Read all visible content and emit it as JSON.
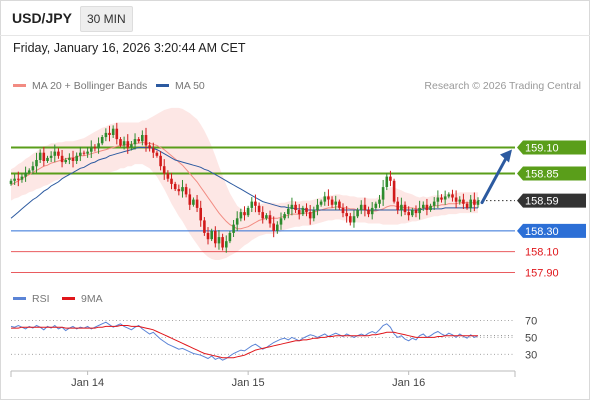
{
  "header": {
    "symbol": "USD/JPY",
    "timeframe": "30 MIN",
    "datetime": "Friday, January 16, 2026 3:20:44 AM CET"
  },
  "legend": {
    "items": [
      {
        "label": "MA 20 + Bollinger Bands",
        "color": "#f28b82"
      },
      {
        "label": "MA 50",
        "color": "#2c5aa0"
      }
    ],
    "credit": "Research © 2026 Trading Central"
  },
  "rsi_legend": {
    "items": [
      {
        "label": "RSI",
        "color": "#5b84d6"
      },
      {
        "label": "9MA",
        "color": "#e0161b"
      }
    ]
  },
  "chart_data": [
    {
      "type": "candlestick",
      "symbol": "USD/JPY",
      "timeframe": "30 MIN",
      "x_ticks": [
        "Jan 14",
        "Jan 15",
        "Jan 16"
      ],
      "ylim": [
        157.78,
        159.45
      ],
      "last_price": "158.59",
      "levels": [
        {
          "value": 159.1,
          "label": "159.10",
          "style": "resistance",
          "color": "#5a9e1a"
        },
        {
          "value": 158.85,
          "label": "158.85",
          "style": "resistance",
          "color": "#5a9e1a"
        },
        {
          "value": 158.59,
          "label": "158.59",
          "style": "last",
          "color": "#333333"
        },
        {
          "value": 158.3,
          "label": "158.30",
          "style": "pivot",
          "color": "#2c6fd6"
        },
        {
          "value": 158.1,
          "label": "158.10",
          "style": "support",
          "color": "#e0161b"
        },
        {
          "value": 157.9,
          "label": "157.90",
          "style": "support",
          "color": "#e0161b"
        }
      ],
      "close": [
        158.78,
        158.8,
        158.79,
        158.82,
        158.86,
        158.88,
        158.92,
        158.98,
        159.05,
        158.97,
        159.0,
        159.02,
        159.06,
        159.02,
        158.96,
        158.98,
        159.0,
        158.97,
        159.02,
        159.05,
        159.04,
        159.06,
        159.1,
        159.09,
        159.14,
        159.2,
        159.24,
        159.22,
        159.28,
        159.18,
        159.12,
        159.16,
        159.1,
        159.13,
        159.18,
        159.16,
        159.22,
        159.12,
        159.09,
        159.05,
        159.02,
        158.92,
        158.85,
        158.8,
        158.75,
        158.7,
        158.68,
        158.72,
        158.65,
        158.55,
        158.6,
        158.52,
        158.4,
        158.28,
        158.22,
        158.3,
        158.18,
        158.24,
        158.14,
        158.2,
        158.28,
        158.36,
        158.42,
        158.48,
        158.45,
        158.52,
        158.58,
        158.54,
        158.48,
        158.42,
        158.45,
        158.37,
        158.3,
        158.36,
        158.42,
        158.46,
        158.51,
        158.55,
        158.5,
        158.46,
        158.52,
        158.48,
        158.42,
        158.5,
        158.55,
        158.58,
        158.63,
        158.6,
        158.55,
        158.58,
        158.52,
        158.47,
        158.44,
        158.38,
        158.44,
        158.5,
        158.55,
        158.5,
        158.46,
        158.52,
        158.56,
        158.6,
        158.72,
        158.82,
        158.78,
        158.58,
        158.5,
        158.55,
        158.48,
        158.45,
        158.5,
        158.47,
        158.52,
        158.55,
        158.5,
        158.54,
        158.58,
        158.62,
        158.6,
        158.63,
        158.65,
        158.62,
        158.58,
        158.6,
        158.56,
        158.52,
        158.6,
        158.55,
        158.59
      ],
      "ma20": [
        158.74,
        158.76,
        158.78,
        158.8,
        158.82,
        158.84,
        158.86,
        158.88,
        158.9,
        158.92,
        158.93,
        158.95,
        158.96,
        158.97,
        158.98,
        158.99,
        159.0,
        159.0,
        159.01,
        159.02,
        159.02,
        159.03,
        159.04,
        159.05,
        159.06,
        159.07,
        159.08,
        159.09,
        159.1,
        159.11,
        159.12,
        159.12,
        159.13,
        159.13,
        159.14,
        159.14,
        159.15,
        159.14,
        159.14,
        159.13,
        159.12,
        159.1,
        159.08,
        159.05,
        159.02,
        158.99,
        158.96,
        158.93,
        158.89,
        158.85,
        158.81,
        158.77,
        158.72,
        158.67,
        158.62,
        158.57,
        158.52,
        158.47,
        158.43,
        158.39,
        158.36,
        158.34,
        158.32,
        158.32,
        158.33,
        158.34,
        158.36,
        158.38,
        158.4,
        158.41,
        158.42,
        158.42,
        158.42,
        158.42,
        158.43,
        158.44,
        158.45,
        158.46,
        158.46,
        158.46,
        158.47,
        158.47,
        158.47,
        158.48,
        158.49,
        158.5,
        158.51,
        158.52,
        158.52,
        158.53,
        158.53,
        158.52,
        158.52,
        158.51,
        158.51,
        158.5,
        158.5,
        158.5,
        158.49,
        158.49,
        158.49,
        158.5,
        158.51,
        158.53,
        158.54,
        158.54,
        158.53,
        158.53,
        158.52,
        158.52,
        158.52,
        158.51,
        158.51,
        158.52,
        158.52,
        158.53,
        158.54,
        158.54,
        158.55,
        158.55,
        158.56,
        158.56,
        158.56,
        158.57,
        158.57,
        158.57,
        158.57,
        158.57,
        158.57
      ],
      "bb_width": [
        0.15,
        0.15,
        0.16,
        0.16,
        0.17,
        0.17,
        0.18,
        0.18,
        0.19,
        0.19,
        0.19,
        0.19,
        0.18,
        0.18,
        0.17,
        0.17,
        0.16,
        0.16,
        0.16,
        0.16,
        0.17,
        0.18,
        0.19,
        0.2,
        0.21,
        0.22,
        0.22,
        0.23,
        0.23,
        0.23,
        0.22,
        0.22,
        0.21,
        0.21,
        0.2,
        0.2,
        0.21,
        0.22,
        0.24,
        0.27,
        0.3,
        0.34,
        0.38,
        0.42,
        0.46,
        0.49,
        0.52,
        0.54,
        0.56,
        0.58,
        0.59,
        0.6,
        0.6,
        0.59,
        0.57,
        0.54,
        0.5,
        0.45,
        0.4,
        0.35,
        0.3,
        0.26,
        0.22,
        0.19,
        0.17,
        0.16,
        0.15,
        0.15,
        0.15,
        0.15,
        0.15,
        0.15,
        0.15,
        0.14,
        0.14,
        0.13,
        0.13,
        0.13,
        0.12,
        0.12,
        0.12,
        0.12,
        0.12,
        0.12,
        0.12,
        0.12,
        0.12,
        0.12,
        0.12,
        0.12,
        0.12,
        0.12,
        0.12,
        0.12,
        0.12,
        0.12,
        0.12,
        0.12,
        0.12,
        0.12,
        0.12,
        0.13,
        0.15,
        0.17,
        0.18,
        0.18,
        0.17,
        0.16,
        0.15,
        0.14,
        0.13,
        0.12,
        0.11,
        0.11,
        0.1,
        0.1,
        0.1,
        0.1,
        0.1,
        0.1,
        0.1,
        0.1,
        0.1,
        0.1,
        0.1,
        0.1,
        0.1,
        0.1,
        0.1
      ],
      "ma50": [
        158.42,
        158.45,
        158.48,
        158.51,
        158.54,
        158.57,
        158.6,
        158.62,
        158.65,
        158.68,
        158.7,
        158.73,
        158.75,
        158.77,
        158.8,
        158.82,
        158.84,
        158.86,
        158.88,
        158.9,
        158.91,
        158.93,
        158.95,
        158.96,
        158.98,
        158.99,
        159.0,
        159.02,
        159.03,
        159.04,
        159.05,
        159.06,
        159.07,
        159.08,
        159.09,
        159.1,
        159.1,
        159.1,
        159.1,
        159.09,
        159.08,
        159.06,
        159.04,
        159.02,
        159.0,
        158.98,
        158.97,
        158.96,
        158.95,
        158.94,
        158.93,
        158.92,
        158.91,
        158.89,
        158.88,
        158.86,
        158.84,
        158.82,
        158.8,
        158.78,
        158.76,
        158.74,
        158.72,
        158.7,
        158.68,
        158.66,
        158.64,
        158.62,
        158.6,
        158.58,
        158.57,
        158.56,
        158.55,
        158.54,
        158.53,
        158.53,
        158.52,
        158.52,
        158.51,
        158.51,
        158.51,
        158.5,
        158.5,
        158.5,
        158.5,
        158.5,
        158.5,
        158.5,
        158.5,
        158.5,
        158.5,
        158.5,
        158.5,
        158.5,
        158.5,
        158.5,
        158.5,
        158.5,
        158.5,
        158.5,
        158.5,
        158.5,
        158.5,
        158.5,
        158.5,
        158.5,
        158.5,
        158.5,
        158.5,
        158.5,
        158.5,
        158.5,
        158.5,
        158.51,
        158.51,
        158.51,
        158.51,
        158.51,
        158.51,
        158.52,
        158.52,
        158.52,
        158.52,
        158.52,
        158.52,
        158.52,
        158.52,
        158.52,
        158.52
      ]
    },
    {
      "type": "line",
      "name": "RSI",
      "ylim": [
        15,
        80
      ],
      "y_ticks": [
        "70",
        "50",
        "30"
      ],
      "reference_levels": [
        70,
        50,
        30
      ],
      "series": [
        {
          "name": "RSI",
          "values": [
            63,
            62,
            64,
            62,
            60,
            63,
            61,
            64,
            62,
            59,
            63,
            61,
            64,
            60,
            62,
            58,
            61,
            63,
            60,
            62,
            61,
            63,
            60,
            62,
            64,
            66,
            68,
            65,
            62,
            64,
            66,
            63,
            61,
            59,
            62,
            64,
            60,
            57,
            54,
            56,
            52,
            48,
            45,
            42,
            40,
            38,
            36,
            37,
            35,
            33,
            31,
            30,
            29,
            27,
            25,
            28,
            24,
            26,
            23,
            25,
            28,
            31,
            33,
            35,
            34,
            37,
            40,
            42,
            39,
            36,
            38,
            41,
            44,
            46,
            48,
            49,
            47,
            50,
            48,
            46,
            49,
            51,
            53,
            52,
            50,
            52,
            54,
            51,
            53,
            55,
            53,
            51,
            54,
            52,
            50,
            52,
            54,
            52,
            55,
            57,
            55,
            59,
            64,
            66,
            62,
            54,
            50,
            52,
            48,
            46,
            49,
            47,
            52,
            54,
            50,
            52,
            55,
            57,
            54,
            52,
            55,
            53,
            50,
            54,
            51,
            49,
            53,
            50,
            52
          ]
        },
        {
          "name": "9MA",
          "values": [
            61,
            61,
            61,
            62,
            62,
            62,
            62,
            62,
            62,
            62,
            62,
            62,
            62,
            62,
            62,
            61,
            61,
            61,
            61,
            61,
            61,
            61,
            61,
            61,
            62,
            62,
            63,
            63,
            63,
            63,
            64,
            64,
            64,
            63,
            63,
            63,
            62,
            61,
            60,
            59,
            57,
            55,
            53,
            51,
            49,
            47,
            45,
            43,
            41,
            39,
            37,
            35,
            33,
            31,
            30,
            29,
            28,
            27,
            26,
            26,
            26,
            26,
            27,
            28,
            29,
            31,
            33,
            35,
            36,
            37,
            38,
            39,
            40,
            41,
            42,
            43,
            44,
            45,
            46,
            46,
            47,
            47,
            48,
            49,
            49,
            50,
            50,
            51,
            51,
            52,
            52,
            52,
            52,
            52,
            52,
            52,
            52,
            52,
            52,
            53,
            53,
            54,
            55,
            56,
            56,
            56,
            55,
            54,
            53,
            52,
            51,
            50,
            50,
            50,
            50,
            50,
            50,
            51,
            51,
            52,
            52,
            52,
            52,
            52,
            52,
            52,
            52,
            52,
            52
          ]
        }
      ]
    }
  ]
}
